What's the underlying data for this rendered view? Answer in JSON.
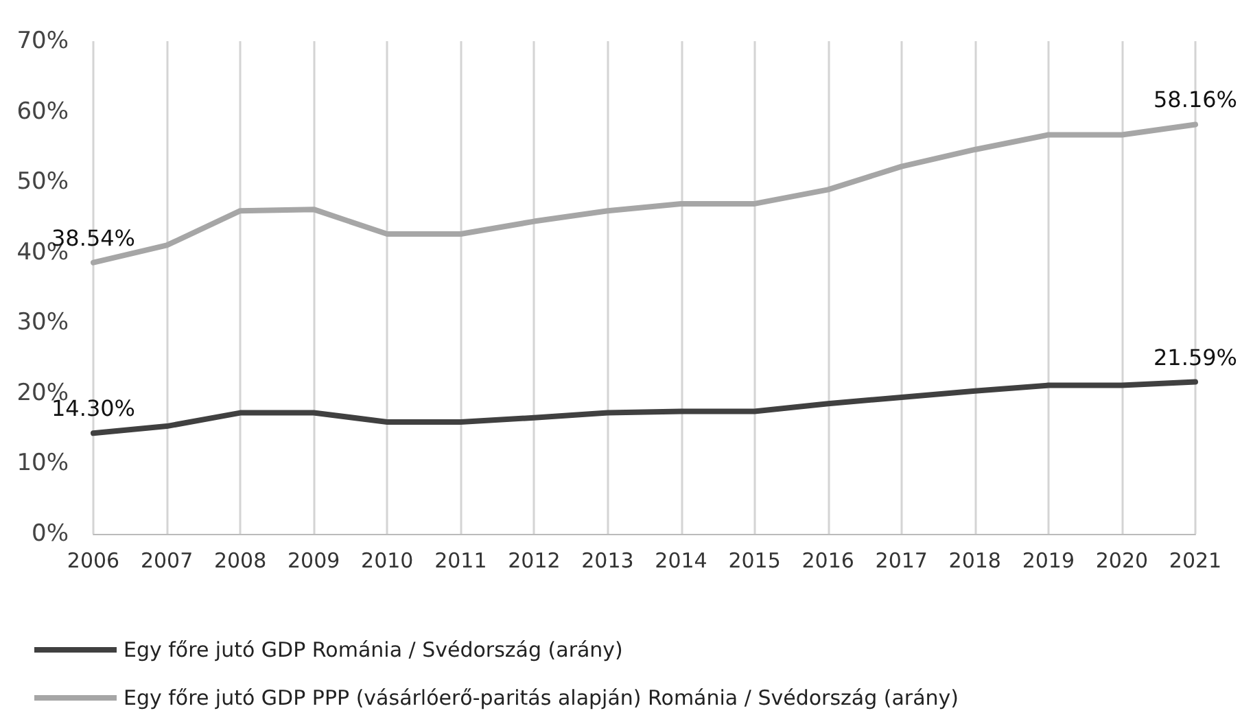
{
  "chart_data": {
    "type": "line",
    "categories": [
      "2006",
      "2007",
      "2008",
      "2009",
      "2010",
      "2011",
      "2012",
      "2013",
      "2014",
      "2015",
      "2016",
      "2017",
      "2018",
      "2019",
      "2020",
      "2021"
    ],
    "series": [
      {
        "name": "Egy főre jutó GDP Románia / Svédország (arány)",
        "color": "#404040",
        "values": [
          14.3,
          15.3,
          17.2,
          17.2,
          15.9,
          15.9,
          16.5,
          17.2,
          17.4,
          17.4,
          18.5,
          19.4,
          20.3,
          21.1,
          21.1,
          21.59
        ],
        "value_labels": [
          "14.30%",
          null,
          null,
          null,
          null,
          null,
          null,
          null,
          null,
          null,
          null,
          null,
          null,
          null,
          null,
          "21.59%"
        ]
      },
      {
        "name": "Egy főre jutó GDP PPP (vásárlóerő-paritás alapján) Románia / Svédország (arány)",
        "color": "#a6a6a6",
        "values": [
          38.54,
          41.0,
          45.9,
          46.1,
          42.6,
          42.6,
          44.4,
          45.9,
          46.9,
          46.9,
          48.9,
          52.2,
          54.6,
          56.7,
          56.7,
          58.16
        ],
        "value_labels": [
          "38.54%",
          null,
          null,
          null,
          null,
          null,
          null,
          null,
          null,
          null,
          null,
          null,
          null,
          null,
          null,
          "58.16%"
        ]
      }
    ],
    "ylim": [
      0,
      70
    ],
    "yticks": [
      {
        "value": 0,
        "label": "0%"
      },
      {
        "value": 10,
        "label": "10%"
      },
      {
        "value": 20,
        "label": "20%"
      },
      {
        "value": 30,
        "label": "30%"
      },
      {
        "value": 40,
        "label": "40%"
      },
      {
        "value": 50,
        "label": "50%"
      },
      {
        "value": 60,
        "label": "60%"
      },
      {
        "value": 70,
        "label": "70%"
      }
    ],
    "grid": "x",
    "legend": "bottom",
    "marker": "none",
    "line_style": "solid"
  }
}
